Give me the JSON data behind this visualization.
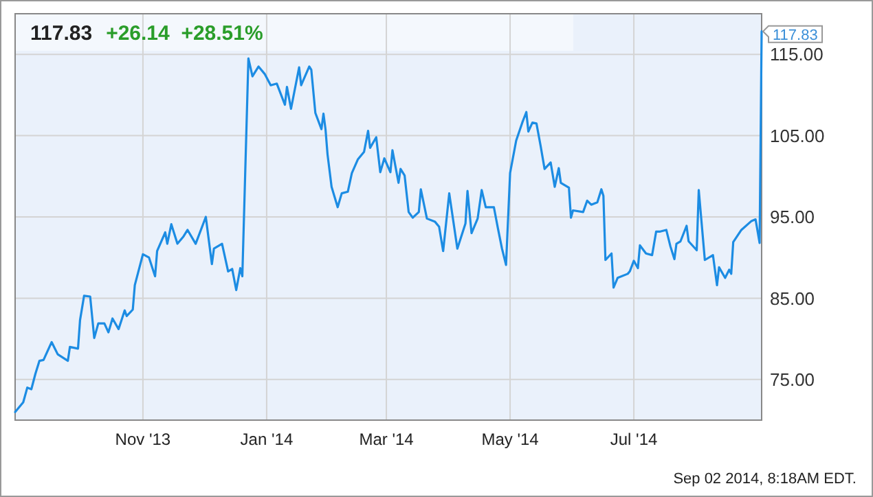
{
  "chart_data": {
    "type": "line",
    "title": "117.83",
    "subtitle": "+26.14  +28.51%",
    "xlim": [
      "2013-08-30",
      "2014-09-02"
    ],
    "ylim": [
      70,
      120
    ],
    "xticks": [
      {
        "value": "2013-11-01",
        "label": "Nov '13"
      },
      {
        "value": "2014-01-01",
        "label": "Jan '14"
      },
      {
        "value": "2014-03-01",
        "label": "Mar '14"
      },
      {
        "value": "2014-05-01",
        "label": "May '14"
      },
      {
        "value": "2014-07-01",
        "label": "Jul '14"
      }
    ],
    "yticks": [
      {
        "value": 75,
        "label": "75.00"
      },
      {
        "value": 85,
        "label": "85.00"
      },
      {
        "value": 95,
        "label": "95.00"
      },
      {
        "value": 105,
        "label": "105.00"
      },
      {
        "value": 115,
        "label": "115.00"
      }
    ],
    "grid": true,
    "marker": "none",
    "line_style": "solid",
    "annotations": [
      {
        "text": "117.83",
        "x": "2014-09-02",
        "y": 117.83
      },
      "Sep 02 2014, 8:18AM EDT."
    ],
    "x": [
      "2013-08-30",
      "2013-09-03",
      "2013-09-05",
      "2013-09-07",
      "2013-09-09",
      "2013-09-11",
      "2013-09-13",
      "2013-09-17",
      "2013-09-20",
      "2013-09-25",
      "2013-09-26",
      "2013-09-30",
      "2013-10-01",
      "2013-10-03",
      "2013-10-06",
      "2013-10-08",
      "2013-10-10",
      "2013-10-13",
      "2013-10-15",
      "2013-10-17",
      "2013-10-20",
      "2013-10-23",
      "2013-10-24",
      "2013-10-27",
      "2013-10-28",
      "2013-11-01",
      "2013-11-04",
      "2013-11-07",
      "2013-11-08",
      "2013-11-12",
      "2013-11-13",
      "2013-11-15",
      "2013-11-18",
      "2013-11-21",
      "2013-11-23",
      "2013-11-27",
      "2013-12-02",
      "2013-12-05",
      "2013-12-06",
      "2013-12-10",
      "2013-12-13",
      "2013-12-15",
      "2013-12-17",
      "2013-12-19",
      "2013-12-20",
      "2013-12-23",
      "2013-12-25",
      "2013-12-28",
      "2013-12-31",
      "2014-01-03",
      "2014-01-06",
      "2014-01-10",
      "2014-01-11",
      "2014-01-13",
      "2014-01-17",
      "2014-01-18",
      "2014-01-22",
      "2014-01-23",
      "2014-01-25",
      "2014-01-28",
      "2014-01-29",
      "2014-01-30",
      "2014-01-31",
      "2014-02-02",
      "2014-02-05",
      "2014-02-07",
      "2014-02-10",
      "2014-02-12",
      "2014-02-15",
      "2014-02-18",
      "2014-02-20",
      "2014-02-21",
      "2014-02-24",
      "2014-02-26",
      "2014-02-28",
      "2014-03-03",
      "2014-03-04",
      "2014-03-07",
      "2014-03-08",
      "2014-03-10",
      "2014-03-12",
      "2014-03-14",
      "2014-03-17",
      "2014-03-18",
      "2014-03-21",
      "2014-03-25",
      "2014-03-27",
      "2014-03-29",
      "2014-04-01",
      "2014-04-05",
      "2014-04-09",
      "2014-04-10",
      "2014-04-12",
      "2014-04-15",
      "2014-04-17",
      "2014-04-19",
      "2014-04-23",
      "2014-04-25",
      "2014-04-27",
      "2014-04-29",
      "2014-05-01",
      "2014-05-04",
      "2014-05-07",
      "2014-05-09",
      "2014-05-10",
      "2014-05-12",
      "2014-05-14",
      "2014-05-16",
      "2014-05-18",
      "2014-05-21",
      "2014-05-23",
      "2014-05-25",
      "2014-05-26",
      "2014-05-30",
      "2014-05-31",
      "2014-06-01",
      "2014-06-06",
      "2014-06-08",
      "2014-06-10",
      "2014-06-13",
      "2014-06-15",
      "2014-06-16",
      "2014-06-17",
      "2014-06-20",
      "2014-06-21",
      "2014-06-23",
      "2014-06-28",
      "2014-06-29",
      "2014-07-01",
      "2014-07-03",
      "2014-07-04",
      "2014-07-07",
      "2014-07-10",
      "2014-07-12",
      "2014-07-14",
      "2014-07-17",
      "2014-07-19",
      "2014-07-21",
      "2014-07-22",
      "2014-07-24",
      "2014-07-27",
      "2014-07-28",
      "2014-08-01",
      "2014-08-02",
      "2014-08-05",
      "2014-08-09",
      "2014-08-11",
      "2014-08-12",
      "2014-08-15",
      "2014-08-17",
      "2014-08-18",
      "2014-08-19",
      "2014-08-23",
      "2014-08-28",
      "2014-08-30",
      "2014-09-01",
      "2014-09-02"
    ],
    "series": [
      {
        "color": "#1c8ce3",
        "values": [
          71.0,
          72.2,
          74.0,
          73.8,
          75.7,
          77.3,
          77.4,
          79.6,
          78.1,
          77.3,
          79.0,
          78.8,
          82.3,
          85.3,
          85.2,
          80.1,
          81.9,
          81.9,
          80.8,
          82.5,
          81.2,
          83.5,
          82.8,
          83.6,
          86.6,
          90.4,
          90.0,
          87.7,
          90.8,
          93.1,
          91.7,
          94.1,
          91.7,
          92.6,
          93.4,
          91.7,
          95.0,
          89.2,
          91.1,
          91.7,
          88.3,
          88.6,
          86.0,
          88.7,
          87.7,
          114.5,
          112.3,
          113.5,
          112.6,
          111.2,
          111.4,
          108.8,
          111.0,
          108.3,
          113.4,
          111.2,
          113.5,
          113.1,
          107.8,
          105.8,
          107.7,
          105.8,
          102.7,
          98.7,
          96.2,
          97.9,
          98.1,
          100.4,
          102.1,
          103.0,
          105.6,
          103.5,
          104.8,
          100.5,
          102.2,
          100.5,
          103.2,
          99.2,
          100.9,
          100.1,
          95.6,
          94.9,
          95.6,
          98.4,
          94.8,
          94.4,
          93.8,
          90.8,
          97.9,
          91.1,
          94.2,
          98.2,
          93.0,
          94.8,
          98.3,
          96.2,
          96.2,
          93.6,
          91.1,
          89.1,
          100.4,
          104.4,
          106.6,
          107.9,
          105.5,
          106.6,
          106.5,
          103.8,
          100.9,
          101.7,
          98.7,
          101.0,
          99.2,
          98.6,
          94.9,
          95.8,
          95.6,
          97.0,
          96.5,
          96.8,
          98.4,
          97.6,
          89.7,
          90.5,
          86.3,
          87.5,
          88.0,
          88.3,
          89.6,
          88.7,
          91.5,
          90.5,
          90.3,
          93.2,
          93.2,
          93.4,
          91.4,
          89.8,
          91.7,
          92.0,
          93.9,
          92.0,
          90.9,
          98.3,
          89.7,
          90.3,
          86.6,
          88.8,
          87.5,
          88.5,
          88.0,
          91.9,
          93.4,
          94.5,
          94.7,
          91.8,
          117.83
        ]
      }
    ]
  }
}
